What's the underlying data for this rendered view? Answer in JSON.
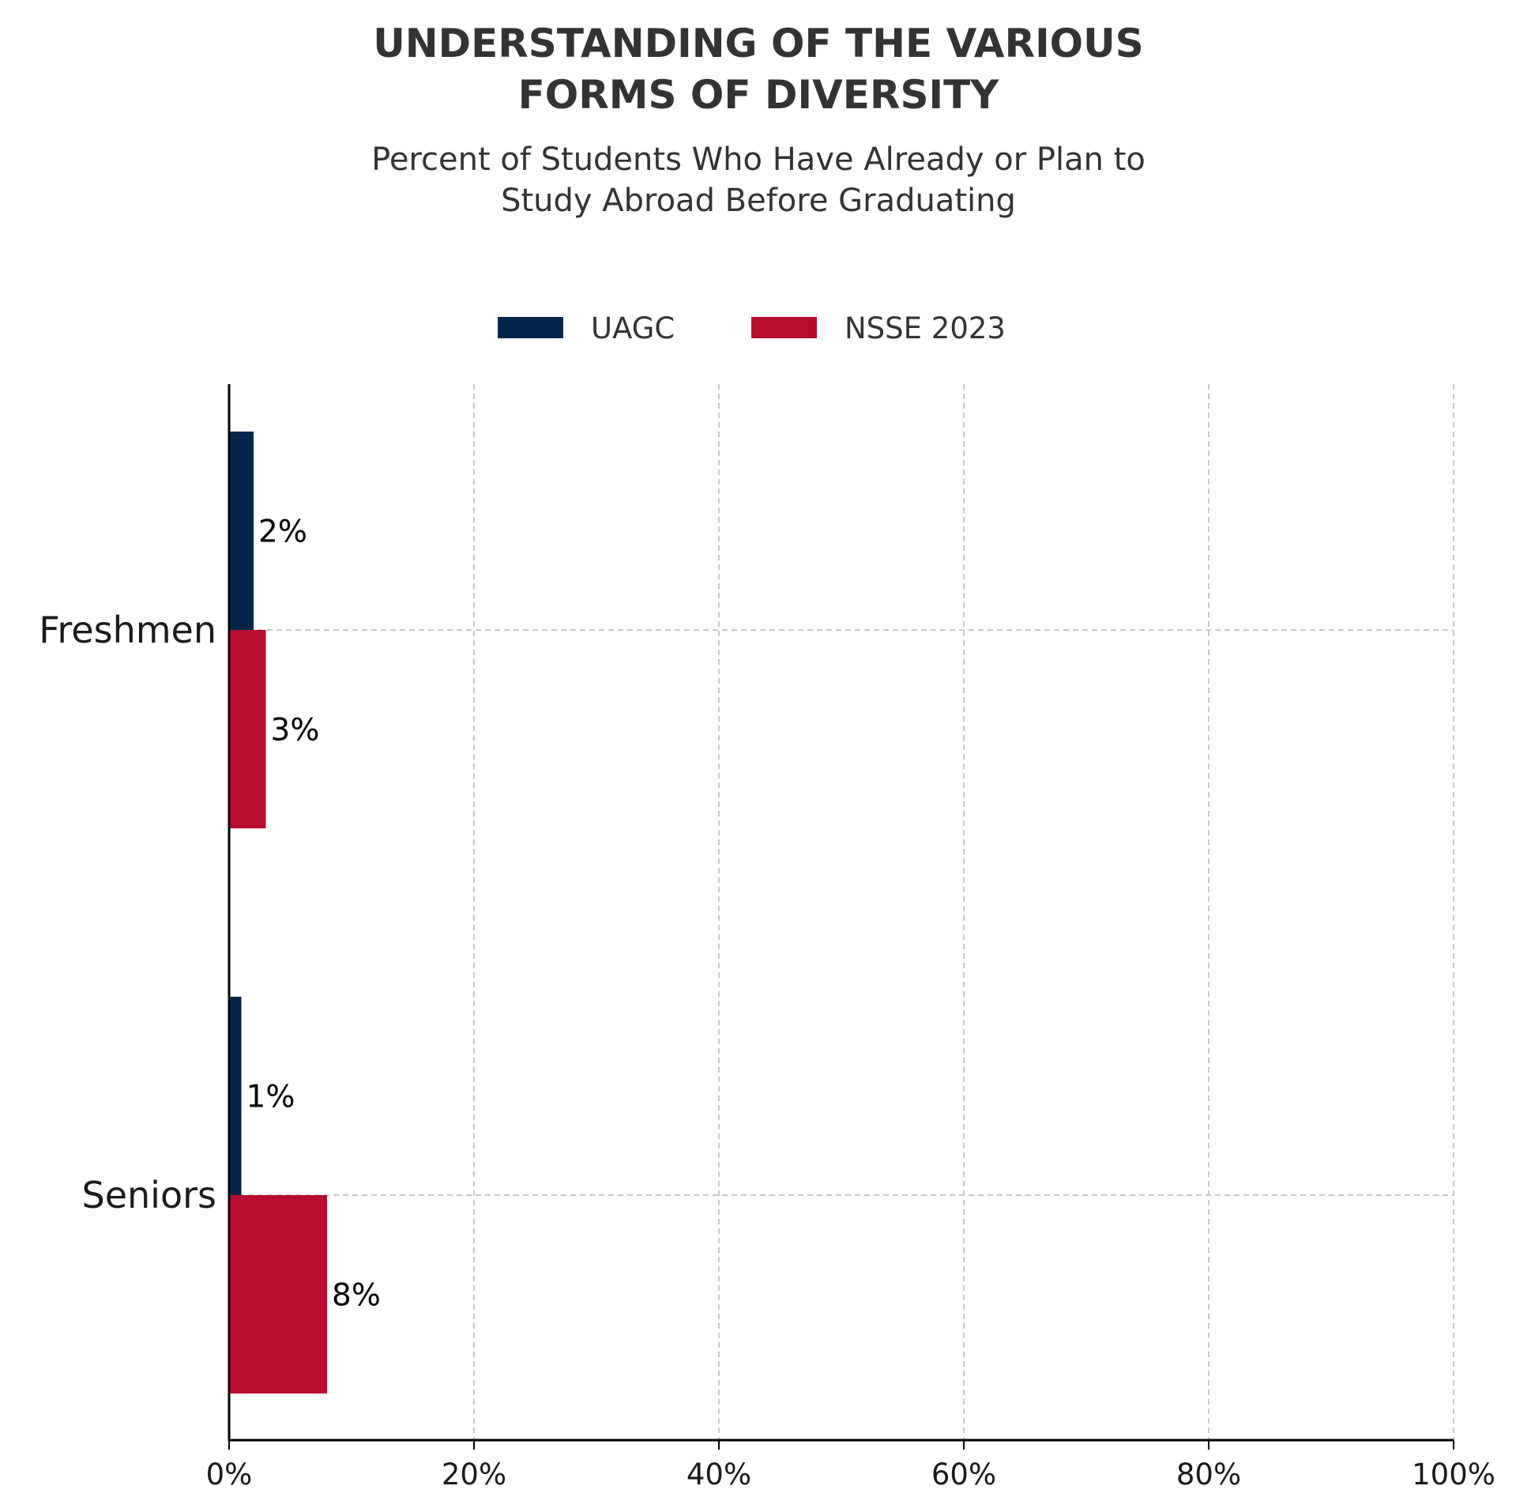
{
  "chart_data": {
    "type": "bar",
    "orientation": "horizontal",
    "title_lines": [
      "UNDERSTANDING OF THE VARIOUS",
      "FORMS OF DIVERSITY"
    ],
    "subtitle_lines": [
      "Percent of Students Who Have Already or Plan to",
      "Study Abroad Before Graduating"
    ],
    "categories": [
      "Freshmen",
      "Seniors"
    ],
    "series": [
      {
        "name": "UAGC",
        "color": "#03254c",
        "values": [
          2,
          1
        ],
        "labels": [
          "2%",
          "1%"
        ]
      },
      {
        "name": "NSSE 2023",
        "color": "#b80d2e",
        "values": [
          3,
          8
        ],
        "labels": [
          "3%",
          "8%"
        ]
      }
    ],
    "xlim": [
      0,
      100
    ],
    "xticks": [
      0,
      20,
      40,
      60,
      80,
      100
    ],
    "xtick_labels": [
      "0%",
      "20%",
      "40%",
      "60%",
      "80%",
      "100%"
    ],
    "grid": true,
    "legend_position": "top-center"
  }
}
